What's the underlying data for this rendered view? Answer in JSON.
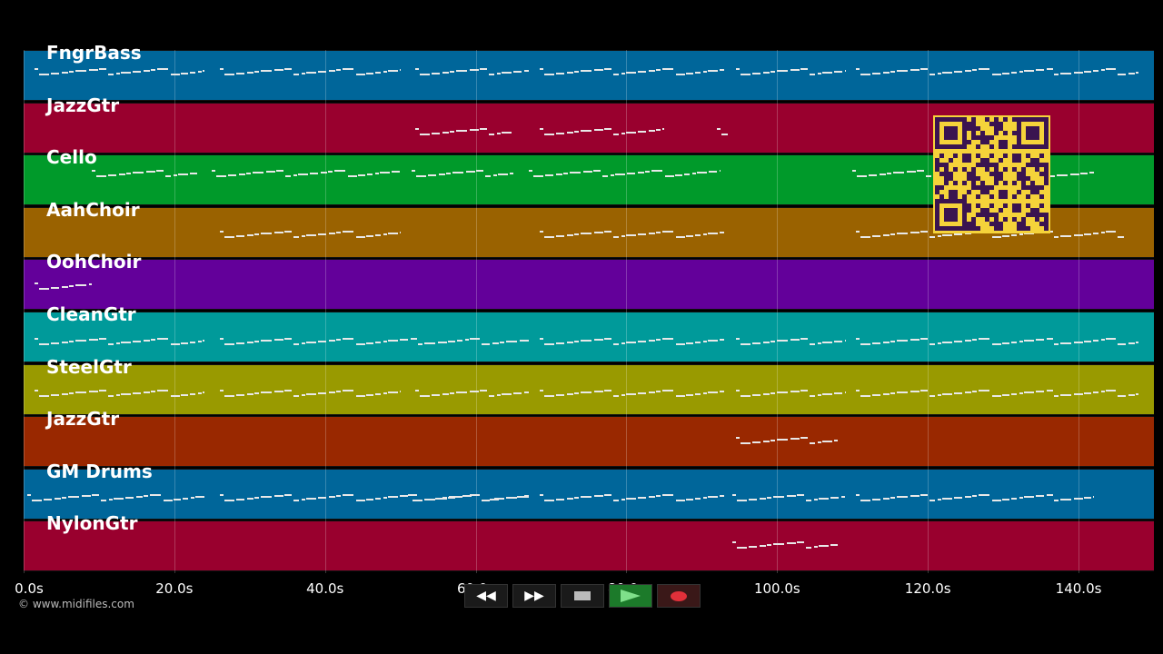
{
  "tracks": [
    {
      "name": "FngrBass",
      "color": "#00669a"
    },
    {
      "name": "JazzGtr",
      "color": "#99002e"
    },
    {
      "name": "Cello",
      "color": "#009a2a"
    },
    {
      "name": "AahChoir",
      "color": "#9a6200"
    },
    {
      "name": "OohChoir",
      "color": "#63009a"
    },
    {
      "name": "CleanGtr",
      "color": "#009a9a"
    },
    {
      "name": "SteelGtr",
      "color": "#999a00"
    },
    {
      "name": "JazzGtr",
      "color": "#992800"
    },
    {
      "name": "GM Drums",
      "color": "#00669a"
    },
    {
      "name": "NylonGtr",
      "color": "#99002e"
    }
  ],
  "timeline": {
    "ticks": [
      "0.0s",
      "20.0s",
      "40.0s",
      "60.0s",
      "80.0s",
      "100.0s",
      "120.0s",
      "140.0s"
    ],
    "max_seconds": 150
  },
  "copyright": "© www.midifiles.com",
  "transport": {
    "rewind": "◀◀",
    "forward": "▶▶"
  },
  "qr_colors": {
    "background": "#f5d33a",
    "modules": "#3a1450"
  },
  "note_segments": [
    {
      "track": 0,
      "start": 1.5,
      "end": 24,
      "pitch": 0.4
    },
    {
      "track": 0,
      "start": 26,
      "end": 50,
      "pitch": 0.4
    },
    {
      "track": 0,
      "start": 52,
      "end": 67,
      "pitch": 0.4
    },
    {
      "track": 0,
      "start": 68.5,
      "end": 93,
      "pitch": 0.4
    },
    {
      "track": 0,
      "start": 94.5,
      "end": 109,
      "pitch": 0.4
    },
    {
      "track": 0,
      "start": 110.5,
      "end": 148,
      "pitch": 0.4
    },
    {
      "track": 1,
      "start": 52,
      "end": 65,
      "pitch": 0.55
    },
    {
      "track": 1,
      "start": 68.5,
      "end": 85,
      "pitch": 0.55
    },
    {
      "track": 1,
      "start": 92,
      "end": 93.5,
      "pitch": 0.55
    },
    {
      "track": 2,
      "start": 9,
      "end": 23,
      "pitch": 0.35
    },
    {
      "track": 2,
      "start": 25,
      "end": 50,
      "pitch": 0.35
    },
    {
      "track": 2,
      "start": 51.5,
      "end": 65,
      "pitch": 0.35
    },
    {
      "track": 2,
      "start": 67,
      "end": 92.5,
      "pitch": 0.35
    },
    {
      "track": 2,
      "start": 110,
      "end": 142,
      "pitch": 0.35
    },
    {
      "track": 3,
      "start": 26,
      "end": 50,
      "pitch": 0.5
    },
    {
      "track": 3,
      "start": 68.5,
      "end": 93,
      "pitch": 0.5
    },
    {
      "track": 3,
      "start": 110.5,
      "end": 146,
      "pitch": 0.5
    },
    {
      "track": 4,
      "start": 1.5,
      "end": 9,
      "pitch": 0.5
    },
    {
      "track": 5,
      "start": 1.5,
      "end": 24,
      "pitch": 0.55
    },
    {
      "track": 5,
      "start": 26,
      "end": 67,
      "pitch": 0.55
    },
    {
      "track": 5,
      "start": 68.5,
      "end": 93,
      "pitch": 0.55
    },
    {
      "track": 5,
      "start": 94.5,
      "end": 109,
      "pitch": 0.55
    },
    {
      "track": 5,
      "start": 110.5,
      "end": 148,
      "pitch": 0.55
    },
    {
      "track": 6,
      "start": 1.5,
      "end": 24,
      "pitch": 0.55
    },
    {
      "track": 6,
      "start": 26,
      "end": 50,
      "pitch": 0.55
    },
    {
      "track": 6,
      "start": 52,
      "end": 67,
      "pitch": 0.55
    },
    {
      "track": 6,
      "start": 68.5,
      "end": 93,
      "pitch": 0.55
    },
    {
      "track": 6,
      "start": 94.5,
      "end": 109,
      "pitch": 0.55
    },
    {
      "track": 6,
      "start": 110.5,
      "end": 148,
      "pitch": 0.55
    },
    {
      "track": 7,
      "start": 94.5,
      "end": 108,
      "pitch": 0.45
    },
    {
      "track": 8,
      "start": 0.5,
      "end": 24,
      "pitch": 0.55
    },
    {
      "track": 8,
      "start": 26,
      "end": 67,
      "pitch": 0.55
    },
    {
      "track": 8,
      "start": 51,
      "end": 67,
      "pitch": 0.55
    },
    {
      "track": 8,
      "start": 68.5,
      "end": 93,
      "pitch": 0.55
    },
    {
      "track": 8,
      "start": 94,
      "end": 109,
      "pitch": 0.55
    },
    {
      "track": 8,
      "start": 110.5,
      "end": 142,
      "pitch": 0.55
    },
    {
      "track": 9,
      "start": 94,
      "end": 108,
      "pitch": 0.45
    }
  ]
}
